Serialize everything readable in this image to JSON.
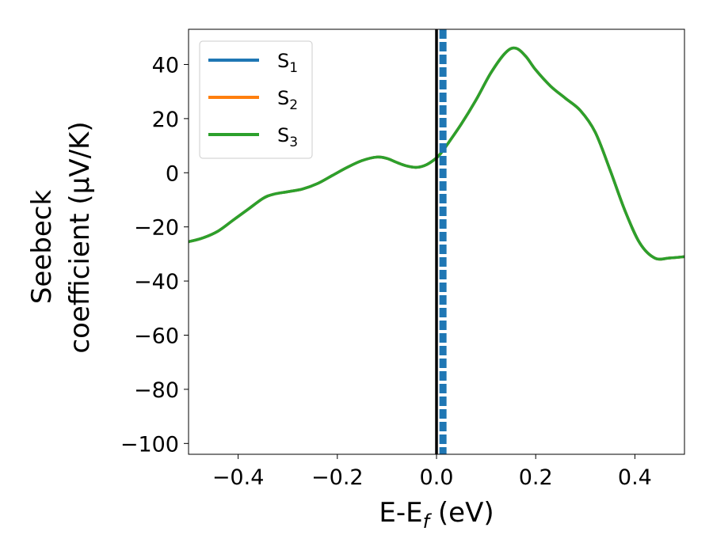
{
  "chart_data": {
    "type": "line",
    "xlabel": "E-E",
    "xlabel_sub": "f",
    "xlabel_unit": " (eV)",
    "ylabel_line1": "Seebeck",
    "ylabel_line2": "coefficient  (μV/K)",
    "xlim": [
      -0.5,
      0.5
    ],
    "ylim": [
      -104,
      53
    ],
    "xticks": [
      -0.4,
      -0.2,
      0.0,
      0.2,
      0.4
    ],
    "xtick_labels": [
      "−0.4",
      "−0.2",
      "0.0",
      "0.2",
      "0.4"
    ],
    "yticks": [
      40,
      20,
      0,
      -20,
      -40,
      -60,
      -80,
      -100
    ],
    "ytick_labels": [
      "40",
      "20",
      "0",
      "−20",
      "−40",
      "−60",
      "−80",
      "−100"
    ],
    "legend_position": "top-left",
    "grid": false,
    "series": [
      {
        "name": "S",
        "sub": "1",
        "color": "#1f77b4"
      },
      {
        "name": "S",
        "sub": "2",
        "color": "#ff7f0e"
      },
      {
        "name": "S",
        "sub": "3",
        "color": "#2ca02c"
      }
    ],
    "curve": {
      "x": [
        -0.5,
        -0.47,
        -0.44,
        -0.41,
        -0.38,
        -0.35,
        -0.33,
        -0.3,
        -0.27,
        -0.24,
        -0.21,
        -0.18,
        -0.15,
        -0.12,
        -0.1,
        -0.08,
        -0.06,
        -0.04,
        -0.02,
        0.0,
        0.01,
        0.02,
        0.05,
        0.08,
        0.11,
        0.14,
        0.16,
        0.18,
        0.2,
        0.23,
        0.26,
        0.29,
        0.32,
        0.35,
        0.38,
        0.41,
        0.44,
        0.47,
        0.5
      ],
      "y": [
        -25.5,
        -24,
        -21.5,
        -17.5,
        -13.5,
        -9.5,
        -8,
        -7,
        -6,
        -4,
        -1,
        2,
        4.5,
        5.8,
        5.3,
        3.8,
        2.5,
        2,
        3,
        5.5,
        7.5,
        10,
        18,
        27,
        37,
        44.5,
        46,
        43,
        38,
        32,
        27.5,
        23,
        15,
        1,
        -14,
        -26,
        -31.5,
        -31.5,
        -31
      ]
    },
    "vlines": [
      {
        "x": 0.0,
        "color": "#000000",
        "style": "solid"
      },
      {
        "x": 0.013,
        "color": "#1f77b4",
        "style": "dashed"
      }
    ]
  }
}
